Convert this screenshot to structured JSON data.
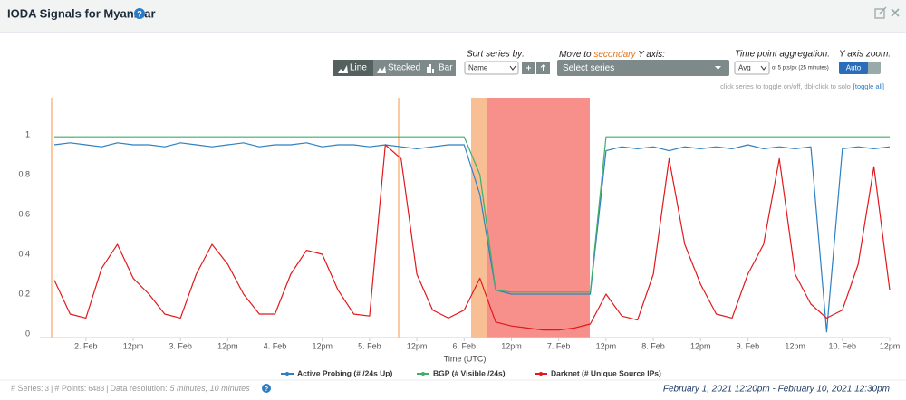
{
  "ui": {
    "title": "IODA Signals for Myanmar",
    "chart_buttons": [
      "Line",
      "Stacked",
      "Bar"
    ],
    "sort_label": "Sort series by:",
    "sort_value": "Name",
    "secondary_label": {
      "before": "Move to ",
      "highlight": "secondary",
      "after": " Y axis:"
    },
    "secondary_value": "Select series",
    "aggregation_label": "Time point aggregation:",
    "aggregation_value": "Avg",
    "aggregation_note": "of 5 pts/px (25 minutes)",
    "zoom_label": "Y axis zoom:",
    "zoom_value": "Auto",
    "hint": "click series to toggle on/off, dbl-click to solo",
    "toggle_all": "[toggle all]",
    "footer": {
      "series_label": "# Series:",
      "series_count": 3,
      "points_label": "# Points:",
      "points_count": 6483,
      "resolution_label": "Data resolution:",
      "resolution_value": "5 minutes, 10 minutes",
      "range": "February 1, 2021 12:20pm - February 10, 2021 12:30pm"
    }
  },
  "chart_data": {
    "type": "line",
    "xlabel": "Time (UTC)",
    "categories": [
      null,
      null,
      "2. Feb",
      null,
      null,
      "12pm",
      null,
      null,
      "3. Feb",
      null,
      null,
      "12pm",
      null,
      null,
      "4. Feb",
      null,
      null,
      "12pm",
      null,
      null,
      "5. Feb",
      null,
      null,
      "12pm",
      null,
      null,
      "6. Feb",
      null,
      null,
      "12pm",
      null,
      null,
      "7. Feb",
      null,
      null,
      "12pm",
      null,
      null,
      "8. Feb",
      null,
      null,
      "12pm",
      null,
      null,
      "9. Feb",
      null,
      null,
      "12pm",
      null,
      null,
      "10. Feb",
      null,
      null,
      "12pm"
    ],
    "series": [
      {
        "name": "Active Probing (# /24s Up)",
        "color": "#2f7fc1",
        "values": [
          0.95,
          0.96,
          0.95,
          0.94,
          0.96,
          0.95,
          0.95,
          0.94,
          0.96,
          0.95,
          0.94,
          0.95,
          0.96,
          0.94,
          0.95,
          0.95,
          0.96,
          0.94,
          0.95,
          0.95,
          0.94,
          0.95,
          0.94,
          0.93,
          0.94,
          0.95,
          0.95,
          0.7,
          0.22,
          0.2,
          0.2,
          0.2,
          0.2,
          0.2,
          0.2,
          0.92,
          0.94,
          0.93,
          0.94,
          0.92,
          0.94,
          0.93,
          0.94,
          0.93,
          0.95,
          0.93,
          0.94,
          0.93,
          0.94,
          0.01,
          0.93,
          0.94,
          0.93,
          0.94
        ]
      },
      {
        "name": "BGP (# Visible /24s)",
        "color": "#3fae6a",
        "values": [
          0.99,
          0.99,
          0.99,
          0.99,
          0.99,
          0.99,
          0.99,
          0.99,
          0.99,
          0.99,
          0.99,
          0.99,
          0.99,
          0.99,
          0.99,
          0.99,
          0.99,
          0.99,
          0.99,
          0.99,
          0.99,
          0.99,
          0.99,
          0.99,
          0.99,
          0.99,
          0.99,
          0.8,
          0.22,
          0.21,
          0.21,
          0.21,
          0.21,
          0.21,
          0.21,
          0.99,
          0.99,
          0.99,
          0.99,
          0.99,
          0.99,
          0.99,
          0.99,
          0.99,
          0.99,
          0.99,
          0.99,
          0.99,
          0.99,
          0.99,
          0.99,
          0.99,
          0.99,
          0.99
        ]
      },
      {
        "name": "Darknet (# Unique Source IPs)",
        "color": "#e0191c",
        "values": [
          0.27,
          0.1,
          0.08,
          0.33,
          0.45,
          0.28,
          0.2,
          0.1,
          0.08,
          0.3,
          0.45,
          0.35,
          0.2,
          0.1,
          0.1,
          0.3,
          0.42,
          0.4,
          0.22,
          0.1,
          0.09,
          0.95,
          0.88,
          0.3,
          0.12,
          0.08,
          0.12,
          0.28,
          0.06,
          0.04,
          0.03,
          0.02,
          0.02,
          0.03,
          0.05,
          0.2,
          0.09,
          0.07,
          0.3,
          0.88,
          0.45,
          0.25,
          0.1,
          0.08,
          0.3,
          0.45,
          0.88,
          0.3,
          0.15,
          0.08,
          0.12,
          0.35,
          0.84,
          0.22
        ]
      }
    ],
    "ylim": [
      0,
      1.2
    ],
    "yticks": [
      0,
      0.2,
      0.4,
      0.6,
      0.8,
      1
    ],
    "grid": false,
    "legend": "bottom"
  }
}
